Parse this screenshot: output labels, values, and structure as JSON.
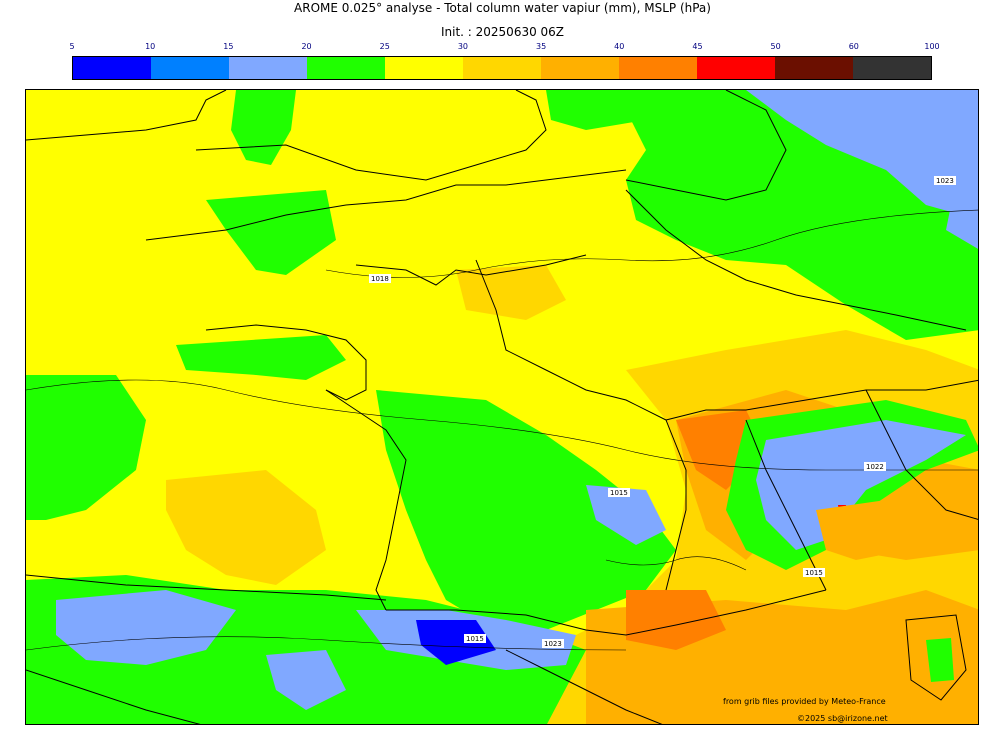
{
  "title_line1": "AROME 0.025° analyse - Total column water vapiur (mm), MSLP (hPa)",
  "title_line2": "Init. : 20250630 06Z",
  "colorbar": {
    "ticks": [
      "5",
      "10",
      "15",
      "20",
      "25",
      "30",
      "35",
      "40",
      "45",
      "50",
      "60",
      "100"
    ],
    "colors": [
      "#0000ff",
      "#0080ff",
      "#80a8ff",
      "#20ff00",
      "#ffff00",
      "#ffd700",
      "#ffb000",
      "#ff8000",
      "#ff0000",
      "#6b0f00",
      "#333333"
    ]
  },
  "isobar_labels": [
    "1018",
    "1015",
    "1015",
    "1022",
    "1023",
    "1023",
    "1015"
  ],
  "credits": {
    "line1": "from grib files provided by Meteo-France",
    "line2": "©2025 sb@irizone.net"
  }
}
